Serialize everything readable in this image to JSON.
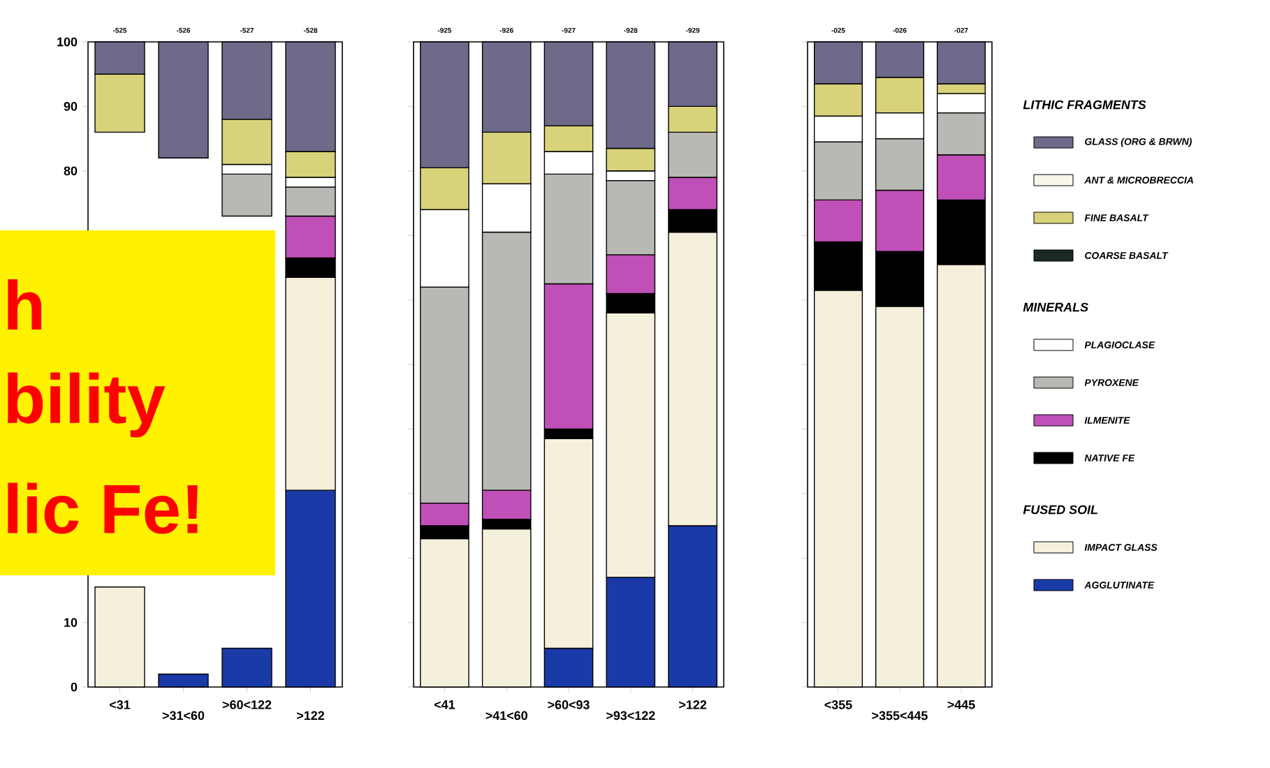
{
  "chart_data": [
    {
      "type": "bar",
      "categories": [
        "<31",
        ">31<60",
        ">60<122",
        ">122"
      ],
      "ylim": [
        0,
        100
      ],
      "yticks": [
        0,
        10,
        80,
        90,
        100
      ],
      "annotations": [
        "-525",
        "-526",
        "-527",
        "-528",
        "h",
        "bility",
        "lic Fe!"
      ],
      "legend": false,
      "series": [
        {
          "color": "#1a3aa8",
          "values": [
            0,
            2,
            6,
            30.5
          ],
          "base": [
            null,
            0,
            0,
            0
          ]
        },
        {
          "color": "#f4f0dc",
          "values": [
            15.5,
            null,
            null,
            33
          ],
          "base": [
            0,
            null,
            null,
            30.5
          ]
        },
        {
          "color": "#000000",
          "values": [
            null,
            null,
            null,
            3
          ],
          "base": [
            null,
            null,
            null,
            63.5
          ]
        },
        {
          "color": "#c050b8",
          "values": [
            null,
            null,
            null,
            6.5
          ],
          "base": [
            null,
            null,
            null,
            66.5
          ]
        },
        {
          "color": "#b8b8b4",
          "values": [
            null,
            null,
            6.5,
            4.5
          ],
          "base": [
            null,
            null,
            73,
            73
          ]
        },
        {
          "color": "#ffffff",
          "values": [
            null,
            null,
            1.5,
            1.5
          ],
          "base": [
            null,
            null,
            79.5,
            77.5
          ]
        },
        {
          "color": "#1a2a22",
          "values": [
            null,
            null,
            0,
            0
          ],
          "base": [
            null,
            null,
            null,
            null
          ]
        },
        {
          "color": "#d8d27a",
          "values": [
            9,
            null,
            7,
            4
          ],
          "base": [
            86,
            null,
            81,
            79
          ]
        },
        {
          "color": "#f8f6ea",
          "values": [
            0,
            0,
            0,
            0
          ],
          "base": [
            null,
            null,
            null,
            null
          ]
        },
        {
          "color": "#6e6a8a",
          "values": [
            5,
            18,
            12,
            17
          ],
          "base": [
            95,
            82,
            88,
            83
          ]
        }
      ]
    },
    {
      "type": "bar",
      "stacked": true,
      "categories": [
        "<41",
        ">41<60",
        ">60<93",
        ">93<122",
        ">122"
      ],
      "ylim": [
        0,
        100
      ],
      "yticks": [
        0,
        10,
        20,
        30,
        40,
        50,
        60,
        70,
        80,
        90,
        100
      ],
      "tick_labels": "x",
      "annotations": [
        "-925",
        "-926",
        "-927",
        "-928",
        "-929"
      ],
      "legend": false,
      "series": [
        {
          "color": "#1a3aa8",
          "values": [
            0,
            0,
            6,
            17,
            25
          ]
        },
        {
          "color": "#f4f0dc",
          "values": [
            23,
            24.5,
            32.5,
            41,
            45.5
          ]
        },
        {
          "color": "#000000",
          "values": [
            2,
            1.5,
            1.5,
            3,
            3.5
          ]
        },
        {
          "color": "#c050b8",
          "values": [
            3.5,
            4.5,
            22.5,
            6,
            5
          ]
        },
        {
          "color": "#b8b8b4",
          "values": [
            33.5,
            40,
            17,
            11.5,
            7
          ]
        },
        {
          "color": "#ffffff",
          "values": [
            12,
            7.5,
            3.5,
            1.5,
            0
          ]
        },
        {
          "color": "#1a2a22",
          "values": [
            0,
            0,
            0,
            0,
            0
          ]
        },
        {
          "color": "#d8d27a",
          "values": [
            6.5,
            8,
            4,
            3.5,
            4
          ]
        },
        {
          "color": "#f8f6ea",
          "values": [
            0,
            0,
            0,
            0,
            0
          ]
        },
        {
          "color": "#6e6a8a",
          "values": [
            19.5,
            14,
            13,
            16.5,
            10
          ]
        }
      ]
    },
    {
      "type": "bar",
      "stacked": true,
      "categories": [
        "<355",
        ">355<445",
        ">445"
      ],
      "ylim": [
        0,
        100
      ],
      "yticks": [
        0,
        10,
        20,
        30,
        40,
        50,
        60,
        70,
        80,
        90,
        100
      ],
      "tick_labels": "x",
      "annotations": [
        "-025",
        "-026",
        "-027",
        "LITHIC FRAGMENTS",
        "MINERALS",
        "FUSED SOIL"
      ],
      "legend": "right",
      "series": [
        {
          "name": "AGGLUTINATE",
          "color": "#1a3aa8",
          "values": [
            0,
            0,
            0
          ]
        },
        {
          "name": "IMPACT GLASS",
          "color": "#f4f0dc",
          "values": [
            61.5,
            59,
            65.5
          ]
        },
        {
          "name": "NATIVE FE",
          "color": "#000000",
          "values": [
            7.5,
            8.5,
            10
          ]
        },
        {
          "name": "ILMENITE",
          "color": "#c050b8",
          "values": [
            6.5,
            9.5,
            7
          ]
        },
        {
          "name": "PYROXENE",
          "color": "#b8b8b4",
          "values": [
            9,
            8,
            6.5
          ]
        },
        {
          "name": "PLAGIOCLASE",
          "color": "#ffffff",
          "values": [
            4,
            4,
            3
          ]
        },
        {
          "name": "COARSE BASALT",
          "color": "#1a2a22",
          "values": [
            0,
            0,
            0
          ]
        },
        {
          "name": "FINE BASALT",
          "color": "#d8d27a",
          "values": [
            5,
            5.5,
            1.5
          ]
        },
        {
          "name": "ANT & MICROBRECCIA",
          "color": "#f8f6ea",
          "values": [
            0,
            0,
            0
          ]
        },
        {
          "name": "GLASS (ORG & BRWN)",
          "color": "#6e6a8a",
          "values": [
            6.5,
            5.5,
            6.5
          ]
        }
      ]
    }
  ]
}
